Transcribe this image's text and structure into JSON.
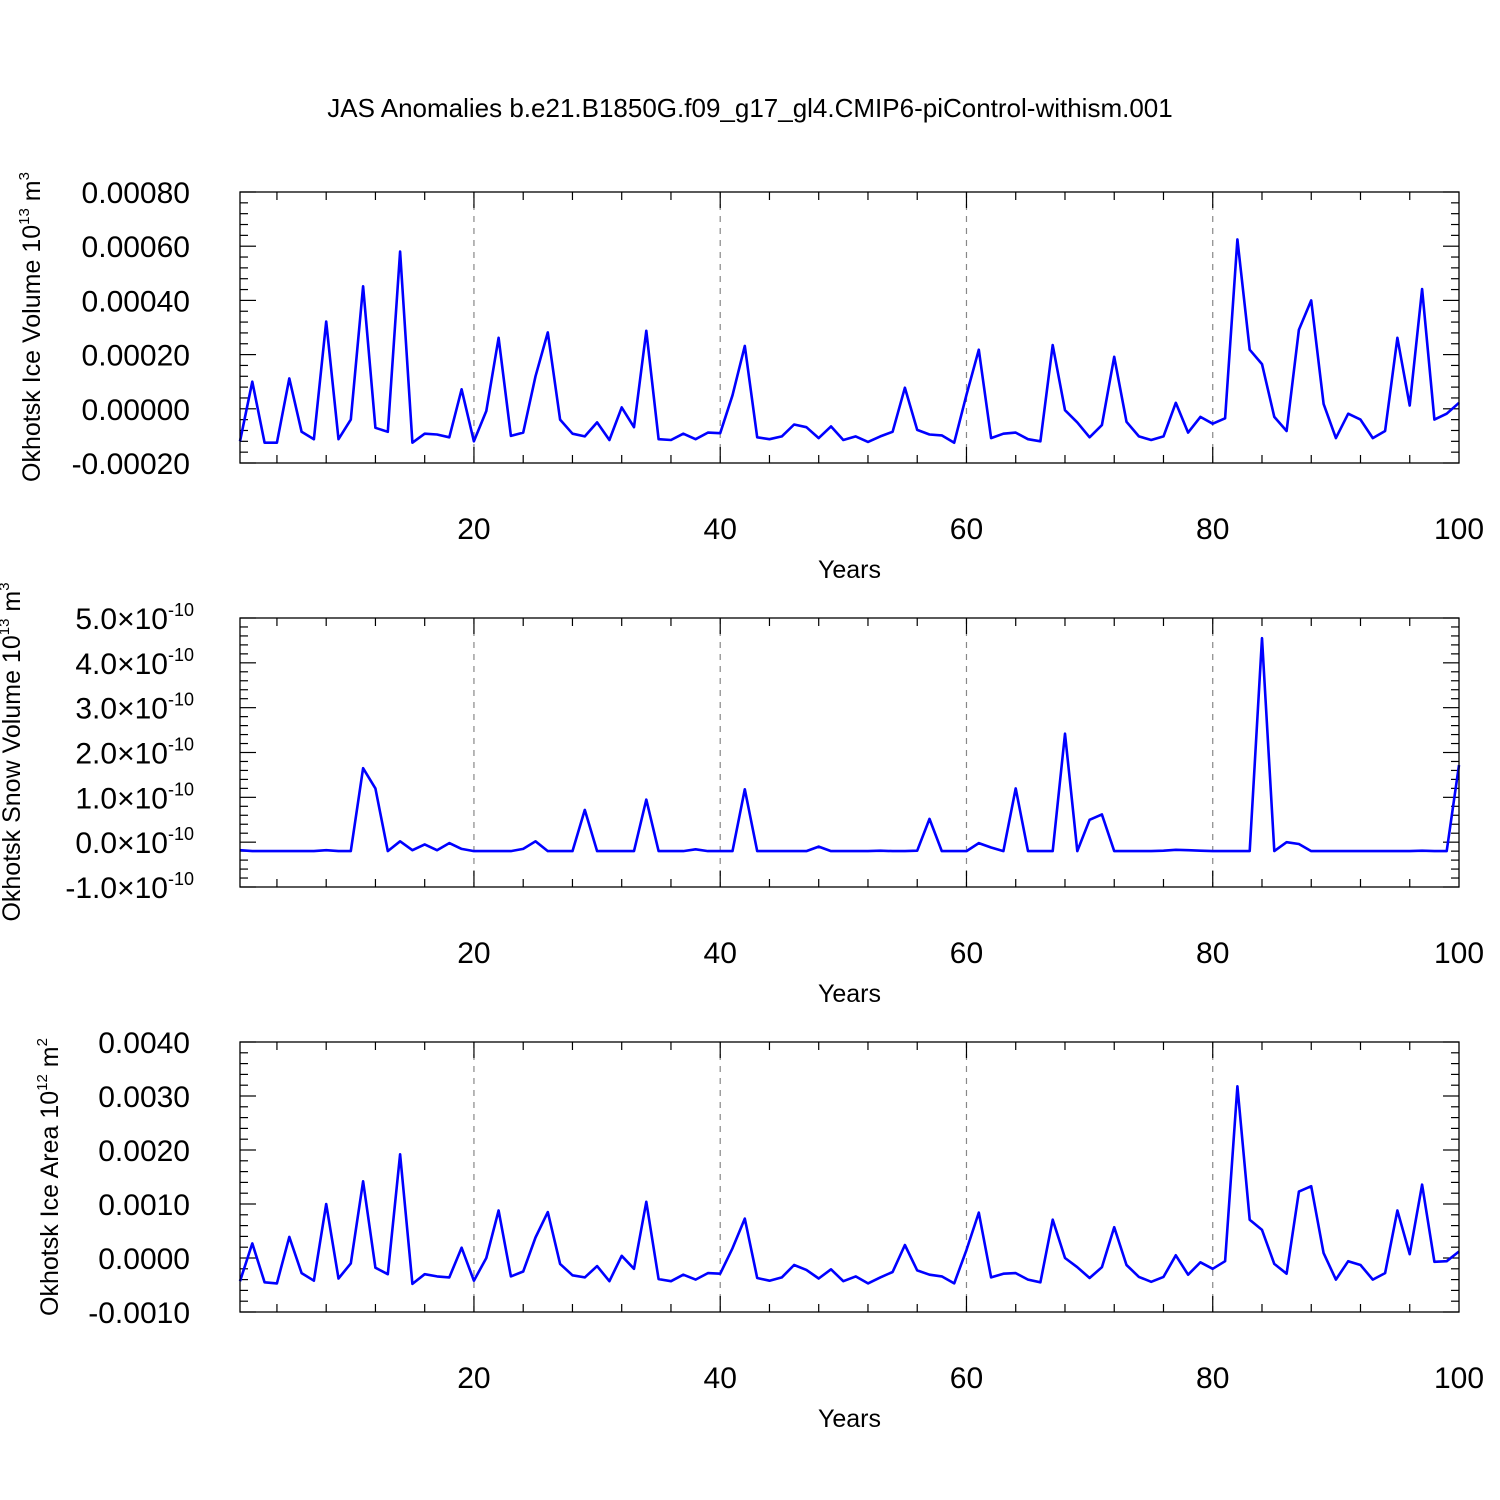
{
  "figure": {
    "title": "JAS Anomalies b.e21.B1850G.f09_g17_gl4.CMIP6-piControl-withism.001",
    "series_color": "#0000ff"
  },
  "chart_data": [
    {
      "type": "line",
      "ylabel": "Okhotsk Ice Volume 10",
      "ylabel_sup": "13",
      "ylabel_unit": "m",
      "ylabel_unit_sup": "3",
      "xlabel": "Years",
      "xlim": [
        1,
        100
      ],
      "ylim": [
        -0.0002,
        0.0008
      ],
      "x_ticks": [
        20,
        40,
        60,
        80,
        100
      ],
      "x_tick_labels": [
        "20",
        "40",
        "60",
        "80",
        "100"
      ],
      "y_ticks": [
        -0.0002,
        0.0,
        0.0002,
        0.0004,
        0.0006,
        0.0008
      ],
      "y_tick_labels": [
        "-0.00020",
        "0.00000",
        "0.00020",
        "0.00040",
        "0.00060",
        "0.00080"
      ],
      "grid": "dashed vertical at x ticks",
      "series": [
        {
          "values": [
            -0.00012,
            0.0001,
            -0.000125,
            -0.000125,
            0.000112,
            -8.5e-05,
            -0.000112,
            0.000322,
            -0.000112,
            -4e-05,
            0.000452,
            -7e-05,
            -8.5e-05,
            0.00058,
            -0.000125,
            -9.2e-05,
            -9.5e-05,
            -0.000105,
            7.2e-05,
            -0.00012,
            -8e-06,
            0.000262,
            -0.0001,
            -8.8e-05,
            0.00012,
            0.000282,
            -4e-05,
            -9.2e-05,
            -0.000102,
            -5e-05,
            -0.000115,
            5e-06,
            -6.8e-05,
            0.000288,
            -0.000112,
            -0.000115,
            -9.2e-05,
            -0.000112,
            -8.8e-05,
            -9e-05,
            5e-05,
            0.000232,
            -0.000105,
            -0.000112,
            -0.000102,
            -5.8e-05,
            -6.8e-05,
            -0.000108,
            -6.5e-05,
            -0.000115,
            -0.000102,
            -0.000122,
            -0.000102,
            -8.5e-05,
            7.8e-05,
            -7.8e-05,
            -9.5e-05,
            -9.8e-05,
            -0.000125,
            5.2e-05,
            0.000218,
            -0.000108,
            -9.2e-05,
            -8.8e-05,
            -0.000112,
            -0.00012,
            0.000235,
            -5e-06,
            -5e-05,
            -0.000105,
            -6e-05,
            0.000192,
            -4.8e-05,
            -0.000102,
            -0.000115,
            -0.000102,
            2.2e-05,
            -8.8e-05,
            -3e-05,
            -5.5e-05,
            -3.5e-05,
            0.000625,
            0.000218,
            0.000165,
            -3e-05,
            -8.2e-05,
            0.000292,
            0.0004,
            1.8e-05,
            -0.000108,
            -1.8e-05,
            -4e-05,
            -0.000108,
            -8.2e-05,
            0.000262,
            1.2e-05,
            0.000442,
            -4e-05,
            -1.8e-05,
            2.2e-05
          ]
        }
      ]
    },
    {
      "type": "line",
      "ylabel": "Okhotsk Snow Volume 10",
      "ylabel_sup": "13",
      "ylabel_unit": "m",
      "ylabel_unit_sup": "3",
      "xlabel": "Years",
      "xlim": [
        1,
        100
      ],
      "ylim": [
        -1e-10,
        5e-10
      ],
      "x_ticks": [
        20,
        40,
        60,
        80,
        100
      ],
      "x_tick_labels": [
        "20",
        "40",
        "60",
        "80",
        "100"
      ],
      "y_ticks": [
        -1e-10,
        0.0,
        1e-10,
        2e-10,
        3e-10,
        4e-10,
        5e-10
      ],
      "y_tick_mantissas": [
        "-1.0",
        "0.0",
        "1.0",
        "2.0",
        "3.0",
        "4.0",
        "5.0"
      ],
      "y_tick_times": "×",
      "y_tick_base": "10",
      "y_tick_exponent": "-10",
      "grid": "dashed vertical at x ticks",
      "series": [
        {
          "values": [
            -1.8e-11,
            -2e-11,
            -2e-11,
            -2e-11,
            -2e-11,
            -2e-11,
            -2e-11,
            -1.8e-11,
            -2e-11,
            -2e-11,
            1.65e-10,
            1.2e-10,
            -2e-11,
            2e-12,
            -1.8e-11,
            -5e-12,
            -1.8e-11,
            -2e-12,
            -1.5e-11,
            -2e-11,
            -2e-11,
            -2e-11,
            -2e-11,
            -1.5e-11,
            2e-12,
            -2e-11,
            -2e-11,
            -2e-11,
            7.2e-11,
            -2e-11,
            -2e-11,
            -2e-11,
            -2e-11,
            9.5e-11,
            -2e-11,
            -2e-11,
            -2e-11,
            -1.6e-11,
            -2e-11,
            -2e-11,
            -2e-11,
            1.18e-10,
            -2e-11,
            -2e-11,
            -2e-11,
            -2e-11,
            -2e-11,
            -1e-11,
            -2e-11,
            -2e-11,
            -2e-11,
            -2e-11,
            -1.9e-11,
            -2e-11,
            -2e-11,
            -1.9e-11,
            5.2e-11,
            -2e-11,
            -2e-11,
            -2e-11,
            -2e-12,
            -1.2e-11,
            -2e-11,
            1.2e-10,
            -2e-11,
            -2e-11,
            -2e-11,
            2.42e-10,
            -2e-11,
            5e-11,
            6.2e-11,
            -2e-11,
            -2e-11,
            -2e-11,
            -2e-11,
            -1.9e-11,
            -1.7e-11,
            -1.8e-11,
            -1.9e-11,
            -2e-11,
            -2e-11,
            -2e-11,
            -2e-11,
            4.55e-10,
            -2e-11,
            0.0,
            -4e-12,
            -2e-11,
            -2e-11,
            -2e-11,
            -2e-11,
            -2e-11,
            -2e-11,
            -2e-11,
            -2e-11,
            -2e-11,
            -1.9e-11,
            -2e-11,
            -2e-11,
            1.72e-10
          ]
        }
      ]
    },
    {
      "type": "line",
      "ylabel": "Okhotsk Ice Area 10",
      "ylabel_sup": "12",
      "ylabel_unit": "m",
      "ylabel_unit_sup": "2",
      "xlabel": "Years",
      "xlim": [
        1,
        100
      ],
      "ylim": [
        -0.001,
        0.004
      ],
      "x_ticks": [
        20,
        40,
        60,
        80,
        100
      ],
      "x_tick_labels": [
        "20",
        "40",
        "60",
        "80",
        "100"
      ],
      "y_ticks": [
        -0.001,
        0.0,
        0.001,
        0.002,
        0.003,
        0.004
      ],
      "y_tick_labels": [
        "-0.0010",
        "0.0000",
        "0.0010",
        "0.0020",
        "0.0030",
        "0.0040"
      ],
      "grid": "dashed vertical at x ticks",
      "series": [
        {
          "values": [
            -0.00043,
            0.00027,
            -0.00045,
            -0.00047,
            0.00039,
            -0.00028,
            -0.00042,
            0.001,
            -0.00038,
            -0.0001,
            0.00142,
            -0.00018,
            -0.0003,
            0.00192,
            -0.00048,
            -0.0003,
            -0.00034,
            -0.00036,
            0.00019,
            -0.00042,
            0.0,
            0.00088,
            -0.00034,
            -0.00025,
            0.00038,
            0.00085,
            -0.00011,
            -0.00032,
            -0.00036,
            -0.00015,
            -0.00043,
            4e-05,
            -0.0002,
            0.00104,
            -0.00039,
            -0.00043,
            -0.00031,
            -0.0004,
            -0.00028,
            -0.00029,
            0.00018,
            0.00073,
            -0.00037,
            -0.00042,
            -0.00036,
            -0.00013,
            -0.00022,
            -0.00038,
            -0.00021,
            -0.00043,
            -0.00034,
            -0.00047,
            -0.00036,
            -0.00026,
            0.00024,
            -0.00023,
            -0.00031,
            -0.00034,
            -0.00047,
            0.00015,
            0.00084,
            -0.00036,
            -0.00029,
            -0.00028,
            -0.0004,
            -0.00045,
            0.00071,
            0.0,
            -0.00017,
            -0.00037,
            -0.00017,
            0.00057,
            -0.00013,
            -0.00035,
            -0.00044,
            -0.00035,
            5e-05,
            -0.00031,
            -8e-05,
            -0.0002,
            -6e-05,
            0.00318,
            0.00071,
            0.00052,
            -0.00011,
            -0.00029,
            0.00123,
            0.00133,
            9e-05,
            -0.0004,
            -6e-05,
            -0.00013,
            -0.0004,
            -0.00028,
            0.00088,
            7e-05,
            0.00136,
            -7e-05,
            -6e-05,
            0.00012
          ]
        }
      ]
    }
  ]
}
